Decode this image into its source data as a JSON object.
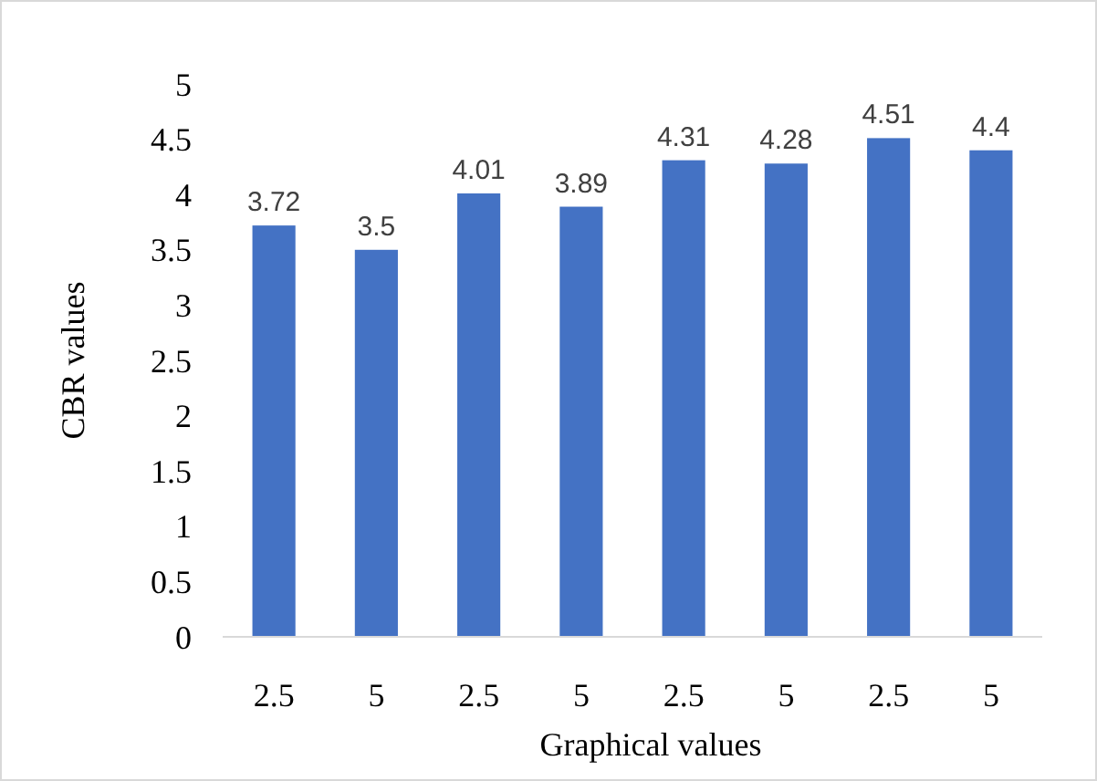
{
  "chart_data": {
    "type": "bar",
    "xlabel": "Graphical values",
    "ylabel": "CBR values",
    "categories": [
      "2.5",
      "5",
      "2.5",
      "5",
      "2.5",
      "5",
      "2.5",
      "5"
    ],
    "values": [
      3.72,
      3.5,
      4.01,
      3.89,
      4.31,
      4.28,
      4.51,
      4.4
    ],
    "color": "#4472c4",
    "ylim": [
      0,
      5
    ],
    "yticks": [
      0,
      0.5,
      1,
      1.5,
      2,
      2.5,
      3,
      3.5,
      4,
      4.5,
      5
    ],
    "grid": false,
    "data_labels": true
  }
}
